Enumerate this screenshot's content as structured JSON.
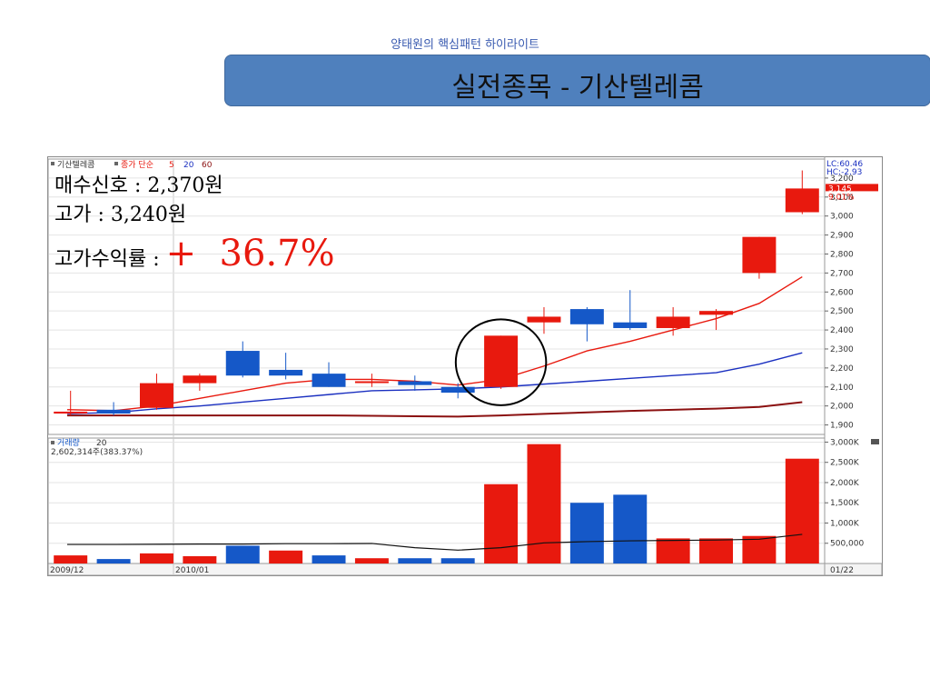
{
  "header": {
    "subtitle": "양태원의 핵심패턴 하이라이트",
    "title": "실전종목 - 기산텔레콤"
  },
  "annotations": {
    "buy_signal": "매수신호 : 2,370원",
    "high_price": "고가 : 3,240원",
    "return_label": "고가수익률 : ",
    "return_value": "+  36.7%"
  },
  "colors": {
    "up": "#e8190e",
    "down": "#1558c8",
    "ma5": "#e8190e",
    "ma20": "#1a2fc0",
    "ma60": "#8b1010",
    "title_box": "#4f80bd",
    "highlight": "#e8190e"
  },
  "chart_data": [
    {
      "type": "candlestick",
      "legend": {
        "name": "기산텔레콤",
        "ma_label": "종가 단순",
        "ma_periods": [
          "5",
          "20",
          "60"
        ]
      },
      "ylim": [
        1850,
        3300
      ],
      "y_ticks": [
        "3,200",
        "3,100",
        "3,000",
        "2,900",
        "2,800",
        "2,700",
        "2,600",
        "2,500",
        "2,400",
        "2,300",
        "2,200",
        "2,100",
        "2,000",
        "1,900"
      ],
      "y_tick_values": [
        3200,
        3100,
        3000,
        2900,
        2800,
        2700,
        2600,
        2500,
        2400,
        2300,
        2200,
        2100,
        2000,
        1900
      ],
      "right_labels": {
        "lc": "LC:60.46",
        "hc": "HC:-2.93",
        "price": "3,145",
        "change": "9.01%"
      },
      "price_value": 3145,
      "candles": [
        {
          "o": 1960,
          "h": 2080,
          "l": 1950,
          "c": 1970
        },
        {
          "o": 1980,
          "h": 2020,
          "l": 1950,
          "c": 1960
        },
        {
          "o": 1990,
          "h": 2170,
          "l": 1980,
          "c": 2120
        },
        {
          "o": 2120,
          "h": 2170,
          "l": 2080,
          "c": 2160
        },
        {
          "o": 2290,
          "h": 2340,
          "l": 2150,
          "c": 2160
        },
        {
          "o": 2190,
          "h": 2280,
          "l": 2140,
          "c": 2160
        },
        {
          "o": 2170,
          "h": 2230,
          "l": 2100,
          "c": 2100
        },
        {
          "o": 2130,
          "h": 2170,
          "l": 2100,
          "c": 2130
        },
        {
          "o": 2130,
          "h": 2160,
          "l": 2080,
          "c": 2110
        },
        {
          "o": 2100,
          "h": 2120,
          "l": 2040,
          "c": 2070
        },
        {
          "o": 2100,
          "h": 2370,
          "l": 2090,
          "c": 2370
        },
        {
          "o": 2440,
          "h": 2520,
          "l": 2380,
          "c": 2470
        },
        {
          "o": 2510,
          "h": 2520,
          "l": 2340,
          "c": 2430
        },
        {
          "o": 2440,
          "h": 2610,
          "l": 2400,
          "c": 2410
        },
        {
          "o": 2410,
          "h": 2520,
          "l": 2370,
          "c": 2470
        },
        {
          "o": 2480,
          "h": 2510,
          "l": 2400,
          "c": 2500
        },
        {
          "o": 2700,
          "h": 2890,
          "l": 2670,
          "c": 2890
        },
        {
          "o": 3020,
          "h": 3240,
          "l": 3010,
          "c": 3145
        }
      ],
      "ma5": [
        1980,
        1975,
        2000,
        2040,
        2080,
        2120,
        2140,
        2140,
        2130,
        2110,
        2140,
        2210,
        2290,
        2340,
        2400,
        2460,
        2540,
        2680
      ],
      "ma20": [
        1960,
        1965,
        1985,
        2000,
        2020,
        2040,
        2060,
        2080,
        2085,
        2090,
        2100,
        2115,
        2130,
        2145,
        2160,
        2175,
        2220,
        2280
      ],
      "ma60": [
        1950,
        1950,
        1950,
        1950,
        1950,
        1950,
        1950,
        1948,
        1946,
        1944,
        1950,
        1958,
        1966,
        1974,
        1980,
        1986,
        1995,
        2020
      ],
      "x_labels": [
        "2009/12",
        "2010/01",
        "01/22"
      ]
    },
    {
      "type": "bar",
      "legend": {
        "name": "거래량",
        "ma_period": "20",
        "value_text": "2,602,314주(383.37%)"
      },
      "ylim": [
        0,
        3100
      ],
      "y_ticks": [
        "3,000K",
        "2,500K",
        "2,000K",
        "1,500K",
        "1,000K",
        "500,000"
      ],
      "y_tick_values": [
        3000,
        2500,
        2000,
        1500,
        1000,
        500
      ],
      "values": [
        200,
        110,
        250,
        180,
        440,
        320,
        200,
        130,
        130,
        130,
        1960,
        2950,
        1500,
        1700,
        620,
        620,
        680,
        2590
      ],
      "directions": [
        "up",
        "down",
        "up",
        "up",
        "down",
        "up",
        "down",
        "up",
        "down",
        "down",
        "up",
        "up",
        "down",
        "down",
        "up",
        "up",
        "up",
        "up"
      ],
      "ma20": [
        470,
        470,
        475,
        480,
        480,
        490,
        490,
        495,
        390,
        330,
        390,
        510,
        540,
        560,
        570,
        580,
        600,
        720
      ]
    }
  ]
}
